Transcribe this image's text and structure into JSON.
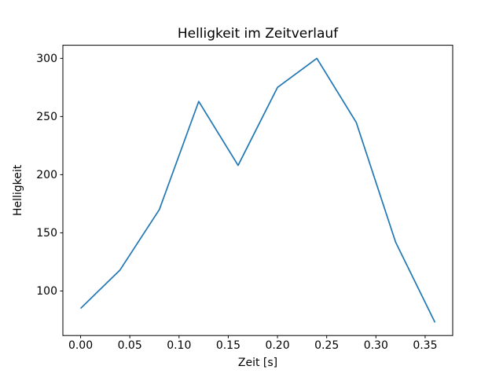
{
  "title": "Helligkeit im Zeitverlauf",
  "chart_data": {
    "type": "line",
    "title": "Helligkeit im Zeitverlauf",
    "xlabel": "Zeit [s]",
    "ylabel": "Helligkeit",
    "x": [
      0.0,
      0.04,
      0.08,
      0.12,
      0.16,
      0.2,
      0.24,
      0.28,
      0.32,
      0.36
    ],
    "values": [
      85,
      118,
      170,
      263,
      208,
      275,
      300,
      245,
      142,
      73
    ],
    "xlim": [
      -0.018,
      0.378
    ],
    "ylim": [
      61.7,
      311.3
    ],
    "xticks": [
      0.0,
      0.05,
      0.1,
      0.15,
      0.2,
      0.25,
      0.3,
      0.35
    ],
    "xtick_labels": [
      "0.00",
      "0.05",
      "0.10",
      "0.15",
      "0.20",
      "0.25",
      "0.30",
      "0.35"
    ],
    "yticks": [
      100,
      150,
      200,
      250,
      300
    ],
    "ytick_labels": [
      "100",
      "150",
      "200",
      "250",
      "300"
    ],
    "line_color": "#1f77b4",
    "spine_color": "#000000",
    "grid": false,
    "legend": "none"
  }
}
